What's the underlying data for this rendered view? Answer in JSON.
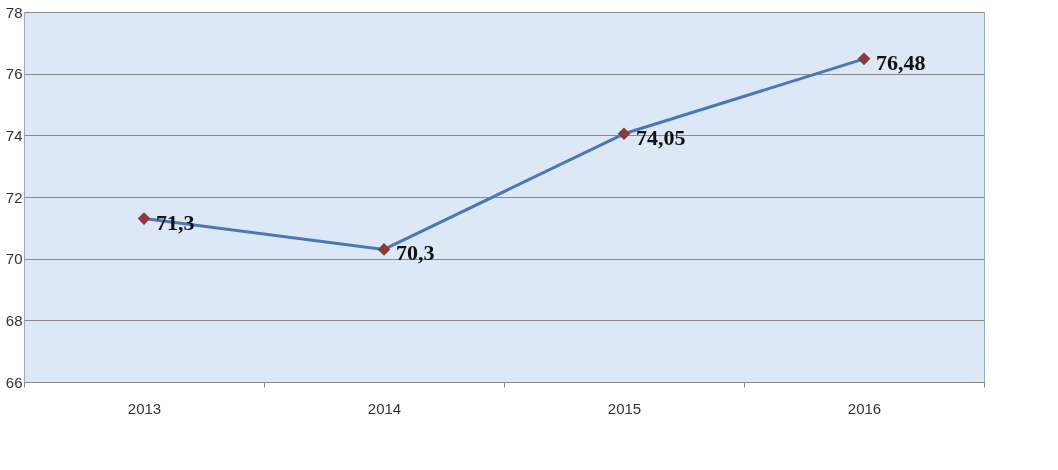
{
  "chart_data": {
    "type": "line",
    "categories": [
      "2013",
      "2014",
      "2015",
      "2016"
    ],
    "series": [
      {
        "color": "#4a78b5",
        "values": [
          71.3,
          70.3,
          74.05,
          76.48
        ],
        "value_labels": [
          "71,3",
          "70,3",
          "74,05",
          "76,48"
        ]
      }
    ],
    "marker": "diamond",
    "line_style": "solid",
    "ylim": [
      66,
      78
    ],
    "yticks": [
      66,
      68,
      70,
      72,
      74,
      76,
      78
    ],
    "grid": "y"
  }
}
